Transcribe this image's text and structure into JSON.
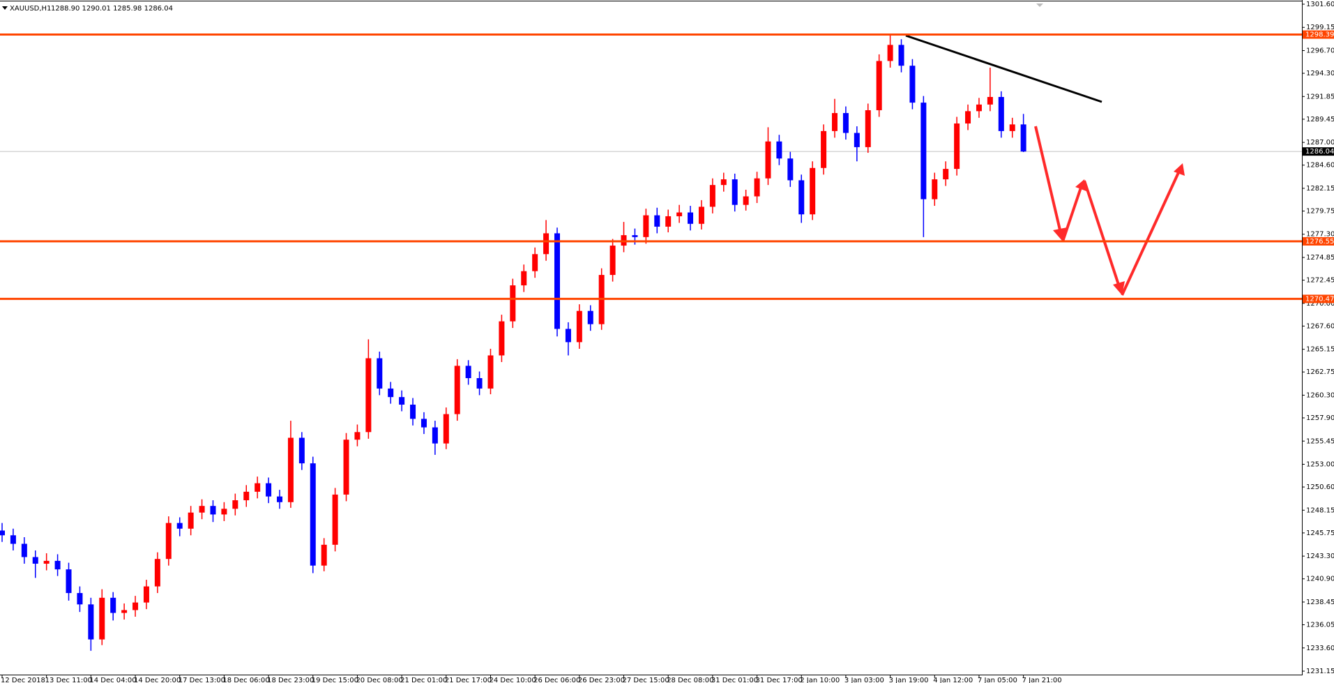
{
  "header": {
    "symbol": "XAUUSD,H1",
    "ohlc": "1288.90 1290.01 1285.98 1286.04"
  },
  "chart_data": {
    "type": "candlestick",
    "categories": [
      "12 Dec 2018",
      null,
      null,
      null,
      "13 Dec 11:00",
      null,
      null,
      null,
      "14 Dec 04:00",
      null,
      null,
      null,
      "14 Dec 20:00",
      null,
      null,
      null,
      "17 Dec 13:00",
      null,
      null,
      null,
      "18 Dec 06:00",
      null,
      null,
      null,
      "18 Dec 23:00",
      null,
      null,
      null,
      "19 Dec 15:00",
      null,
      null,
      null,
      "20 Dec 08:00",
      null,
      null,
      null,
      "21 Dec 01:00",
      null,
      null,
      null,
      "21 Dec 17:00",
      null,
      null,
      null,
      "24 Dec 10:00",
      null,
      null,
      null,
      "26 Dec 06:00",
      null,
      null,
      null,
      "26 Dec 23:00",
      null,
      null,
      null,
      "27 Dec 15:00",
      null,
      null,
      null,
      "28 Dec 08:00",
      null,
      null,
      null,
      "31 Dec 01:00",
      null,
      null,
      null,
      "31 Dec 17:00",
      null,
      null,
      null,
      "2 Jan 10:00",
      null,
      null,
      null,
      "3 Jan 03:00",
      null,
      null,
      null,
      "3 Jan 19:00",
      null,
      null,
      null,
      "4 Jan 12:00",
      null,
      null,
      null,
      "7 Jan 05:00",
      null,
      null,
      null,
      "7 Jan 21:00"
    ],
    "open": [
      1246.0,
      1245.5,
      1244.6,
      1243.2,
      1242.5,
      1242.8,
      1241.9,
      1239.4,
      1238.2,
      1234.5,
      1238.9,
      1237.3,
      1237.6,
      1238.4,
      1240.1,
      1243.0,
      1246.8,
      1246.2,
      1247.9,
      1248.6,
      1247.7,
      1248.3,
      1249.2,
      1250.1,
      1251.0,
      1249.6,
      1249.0,
      1255.8,
      1253.1,
      1242.3,
      1244.5,
      1249.8,
      1255.6,
      1256.4,
      1264.2,
      1261.0,
      1260.1,
      1259.3,
      1257.8,
      1256.9,
      1255.2,
      1258.3,
      1263.4,
      1262.1,
      1261.0,
      1264.5,
      1268.1,
      1271.9,
      1273.4,
      1275.2,
      1277.4,
      1267.3,
      1265.9,
      1269.2,
      1267.8,
      1273.0,
      1276.1,
      1277.2,
      1277.0,
      1279.3,
      1278.1,
      1279.2,
      1279.6,
      1278.4,
      1280.2,
      1282.5,
      1283.1,
      1280.4,
      1281.3,
      1283.2,
      1287.1,
      1285.3,
      1283.0,
      1279.4,
      1284.3,
      1288.2,
      1290.1,
      1288.0,
      1286.5,
      1290.4,
      1295.6,
      1297.3,
      1295.1,
      1291.2,
      1281.0,
      1283.1,
      1284.2,
      1289.0,
      1290.3,
      1291.0,
      1291.8,
      1288.2,
      1288.9
    ],
    "high": [
      1246.8,
      1246.2,
      1245.3,
      1243.9,
      1243.6,
      1243.5,
      1242.6,
      1240.1,
      1238.9,
      1239.8,
      1239.5,
      1238.3,
      1239.1,
      1240.8,
      1243.7,
      1247.5,
      1247.4,
      1248.6,
      1249.3,
      1249.2,
      1249.0,
      1249.9,
      1250.8,
      1251.7,
      1251.6,
      1250.3,
      1257.6,
      1256.4,
      1253.8,
      1245.2,
      1250.5,
      1256.3,
      1257.2,
      1266.2,
      1264.9,
      1261.7,
      1260.8,
      1260.0,
      1258.5,
      1257.6,
      1259.0,
      1264.1,
      1264.0,
      1262.8,
      1265.2,
      1268.8,
      1272.6,
      1274.1,
      1275.9,
      1278.8,
      1278.0,
      1268.0,
      1269.9,
      1269.8,
      1273.7,
      1276.8,
      1278.6,
      1277.9,
      1280.0,
      1280.1,
      1279.9,
      1280.4,
      1280.3,
      1280.9,
      1283.2,
      1283.8,
      1283.7,
      1282.0,
      1283.9,
      1288.6,
      1287.8,
      1286.0,
      1283.6,
      1285.0,
      1288.9,
      1291.6,
      1290.8,
      1288.7,
      1291.1,
      1296.3,
      1298.3,
      1297.9,
      1295.8,
      1291.9,
      1283.8,
      1285.0,
      1289.7,
      1291.0,
      1291.7,
      1294.9,
      1292.4,
      1289.6,
      1290.01
    ],
    "low": [
      1244.8,
      1243.9,
      1242.5,
      1241.0,
      1241.8,
      1241.2,
      1238.6,
      1237.4,
      1233.3,
      1233.9,
      1236.5,
      1236.6,
      1236.9,
      1237.7,
      1239.4,
      1242.3,
      1245.4,
      1245.5,
      1247.2,
      1246.9,
      1247.0,
      1247.6,
      1248.5,
      1249.4,
      1248.9,
      1248.3,
      1248.4,
      1252.4,
      1241.5,
      1241.7,
      1243.8,
      1249.1,
      1254.9,
      1255.7,
      1260.3,
      1259.4,
      1258.6,
      1257.1,
      1256.2,
      1254.0,
      1254.6,
      1257.6,
      1261.4,
      1260.3,
      1260.4,
      1263.8,
      1267.4,
      1271.2,
      1272.7,
      1274.5,
      1266.5,
      1264.5,
      1265.2,
      1267.1,
      1267.2,
      1272.3,
      1275.4,
      1276.2,
      1276.3,
      1277.4,
      1277.5,
      1278.5,
      1277.7,
      1277.8,
      1279.5,
      1281.8,
      1279.7,
      1279.8,
      1280.6,
      1282.5,
      1284.6,
      1282.3,
      1278.5,
      1278.8,
      1283.6,
      1287.5,
      1287.3,
      1285.0,
      1285.9,
      1289.7,
      1294.9,
      1294.4,
      1290.5,
      1277.0,
      1280.3,
      1282.4,
      1283.5,
      1288.3,
      1289.6,
      1290.3,
      1287.5,
      1287.5,
      1285.98
    ],
    "close": [
      1245.5,
      1244.6,
      1243.2,
      1242.5,
      1242.8,
      1241.9,
      1239.4,
      1238.2,
      1234.5,
      1238.9,
      1237.3,
      1237.6,
      1238.4,
      1240.1,
      1243.0,
      1246.8,
      1246.2,
      1247.9,
      1248.6,
      1247.7,
      1248.3,
      1249.2,
      1250.1,
      1251.0,
      1249.6,
      1249.0,
      1255.8,
      1253.1,
      1242.3,
      1244.5,
      1249.8,
      1255.6,
      1256.4,
      1264.2,
      1261.0,
      1260.1,
      1259.3,
      1257.8,
      1256.9,
      1255.2,
      1258.3,
      1263.4,
      1262.1,
      1261.0,
      1264.5,
      1268.1,
      1271.9,
      1273.4,
      1275.2,
      1277.4,
      1267.3,
      1265.9,
      1269.2,
      1267.8,
      1273.0,
      1276.1,
      1277.2,
      1277.0,
      1279.3,
      1278.1,
      1279.2,
      1279.6,
      1278.4,
      1280.2,
      1282.5,
      1283.1,
      1280.4,
      1281.3,
      1283.2,
      1287.1,
      1285.3,
      1283.0,
      1279.4,
      1284.3,
      1288.2,
      1290.1,
      1288.0,
      1286.5,
      1290.4,
      1295.6,
      1297.3,
      1295.1,
      1291.2,
      1281.0,
      1283.1,
      1284.2,
      1289.0,
      1290.3,
      1291.0,
      1291.8,
      1288.2,
      1288.9,
      1286.04
    ],
    "up_color": "#ff0000",
    "down_color": "#0000ff",
    "ylim": [
      1231.15,
      1301.6
    ],
    "yticks": [
      {
        "value": 1301.6,
        "label": "1301.60"
      },
      {
        "value": 1299.15,
        "label": "1299.15"
      },
      {
        "value": 1296.7,
        "label": "1296.70"
      },
      {
        "value": 1294.3,
        "label": "1294.30"
      },
      {
        "value": 1291.85,
        "label": "1291.85"
      },
      {
        "value": 1289.45,
        "label": "1289.45"
      },
      {
        "value": 1287.0,
        "label": "1287.00"
      },
      {
        "value": 1284.6,
        "label": "1284.60"
      },
      {
        "value": 1282.15,
        "label": "1282.15"
      },
      {
        "value": 1279.75,
        "label": "1279.75"
      },
      {
        "value": 1277.3,
        "label": "1277.30"
      },
      {
        "value": 1274.85,
        "label": "1274.85"
      },
      {
        "value": 1272.45,
        "label": "1272.45"
      },
      {
        "value": 1270.0,
        "label": "1270.00"
      },
      {
        "value": 1267.6,
        "label": "1267.60"
      },
      {
        "value": 1265.15,
        "label": "1265.15"
      },
      {
        "value": 1262.75,
        "label": "1262.75"
      },
      {
        "value": 1260.3,
        "label": "1260.30"
      },
      {
        "value": 1257.9,
        "label": "1257.90"
      },
      {
        "value": 1255.45,
        "label": "1255.45"
      },
      {
        "value": 1253.0,
        "label": "1253.00"
      },
      {
        "value": 1250.6,
        "label": "1250.60"
      },
      {
        "value": 1248.15,
        "label": "1248.15"
      },
      {
        "value": 1245.75,
        "label": "1245.75"
      },
      {
        "value": 1243.3,
        "label": "1243.30"
      },
      {
        "value": 1240.9,
        "label": "1240.90"
      },
      {
        "value": 1238.45,
        "label": "1238.45"
      },
      {
        "value": 1236.05,
        "label": "1236.05"
      },
      {
        "value": 1233.6,
        "label": "1233.60"
      },
      {
        "value": 1231.15,
        "label": "1231.15"
      }
    ],
    "levels": {
      "values": [
        1298.39,
        1276.55,
        1270.47
      ],
      "color": "#ff4500"
    },
    "last_price": 1286.04
  }
}
